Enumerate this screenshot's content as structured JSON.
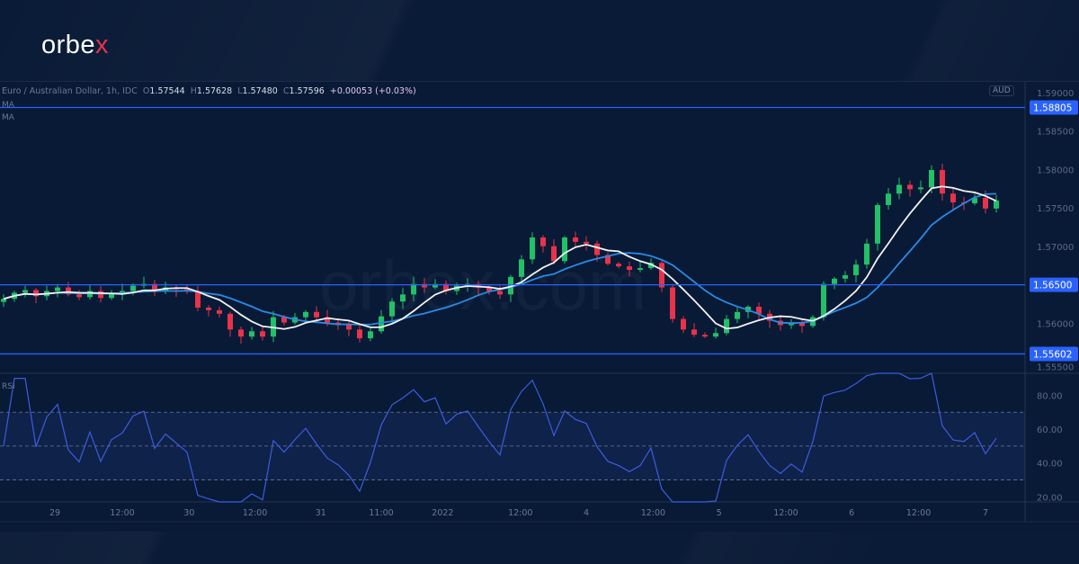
{
  "brand": {
    "logo_main": "orbe",
    "logo_accent": "x",
    "watermark": "orbex.com"
  },
  "legend": {
    "symbol": "Euro / Australian Dollar, 1h, IDC",
    "o_label": "O",
    "o": "1.57544",
    "h_label": "H",
    "h": "1.57628",
    "l_label": "L",
    "l": "1.57480",
    "c_label": "C",
    "c": "1.57596",
    "change": "+0.00053 (+0.03%)",
    "ma1": "MA",
    "ma2": "MA",
    "rsi": "RSI"
  },
  "currency_badge": "AUD",
  "colors": {
    "up": "#22c067",
    "down": "#e8334a",
    "ma_fast": "#f2f2f2",
    "ma_slow": "#2a8ae6",
    "level": "#2962ff",
    "rsi": "#3d5ce0",
    "background": "#081a36"
  },
  "chart_data": [
    {
      "type": "candlestick",
      "ylim": [
        1.5535,
        1.5915
      ],
      "yticks": [
        "1.59000",
        "1.58500",
        "1.58000",
        "1.57500",
        "1.57000",
        "1.56000",
        "1.55500"
      ],
      "ytick_values": [
        1.59,
        1.585,
        1.58,
        1.575,
        1.57,
        1.56,
        1.555
      ],
      "levels": [
        {
          "value": 1.58805,
          "label": "1.58805"
        },
        {
          "value": 1.565,
          "label": "1.56500"
        },
        {
          "value": 1.55602,
          "label": "1.55602"
        }
      ],
      "close": [
        1.56318,
        1.56397,
        1.56432,
        1.56352,
        1.5642,
        1.56466,
        1.56375,
        1.5634,
        1.5642,
        1.56329,
        1.56397,
        1.5642,
        1.56489,
        1.56511,
        1.5642,
        1.56466,
        1.56443,
        1.5642,
        1.56204,
        1.5617,
        1.56124,
        1.55919,
        1.55827,
        1.55896,
        1.55827,
        1.56079,
        1.5601,
        1.56079,
        1.56147,
        1.56079,
        1.5601,
        1.55976,
        1.55919,
        1.55805,
        1.55896,
        1.5609,
        1.56283,
        1.56375,
        1.56511,
        1.56466,
        1.56511,
        1.5642,
        1.56489,
        1.56511,
        1.56466,
        1.5642,
        1.56375,
        1.56603,
        1.56831,
        1.57116,
        1.57002,
        1.56808,
        1.57116,
        1.57059,
        1.57036,
        1.56888,
        1.56774,
        1.5674,
        1.56694,
        1.56717,
        1.56785,
        1.56466,
        1.56056,
        1.55919,
        1.55851,
        1.55827,
        1.55873,
        1.56056,
        1.56147,
        1.56215,
        1.56124,
        1.56033,
        1.55976,
        1.5601,
        1.55965,
        1.56079,
        1.56511,
        1.5658,
        1.56625,
        1.56763,
        1.57036,
        1.57537,
        1.57686,
        1.578,
        1.57743,
        1.57766,
        1.57993,
        1.57686,
        1.57572,
        1.5756,
        1.57629,
        1.57492,
        1.57596
      ],
      "xticks": [
        {
          "label": "29",
          "bar": 4.75
        },
        {
          "label": "12:00",
          "bar": 11
        },
        {
          "label": "30",
          "bar": 17.2
        },
        {
          "label": "12:00",
          "bar": 23.3
        },
        {
          "label": "31",
          "bar": 29.4
        },
        {
          "label": "11:00",
          "bar": 35
        },
        {
          "label": "2022",
          "bar": 40.7
        },
        {
          "label": "12:00",
          "bar": 47.9
        },
        {
          "label": "4",
          "bar": 54
        },
        {
          "label": "12:00",
          "bar": 60.2
        },
        {
          "label": "5",
          "bar": 66.3
        },
        {
          "label": "12:00",
          "bar": 72.5
        },
        {
          "label": "6",
          "bar": 78.6
        },
        {
          "label": "12:00",
          "bar": 84.8
        },
        {
          "label": "7",
          "bar": 91
        }
      ],
      "series": [
        {
          "name": "MA",
          "kind": "moving-average"
        },
        {
          "name": "MA",
          "kind": "moving-average"
        }
      ]
    },
    {
      "type": "line",
      "title": "RSI",
      "ylim": [
        17,
        93
      ],
      "yticks": [
        "80.00",
        "60.00",
        "40.00",
        "20.00"
      ],
      "ytick_values": [
        80,
        60,
        40,
        20
      ],
      "bands": [
        70,
        50,
        30
      ]
    }
  ]
}
